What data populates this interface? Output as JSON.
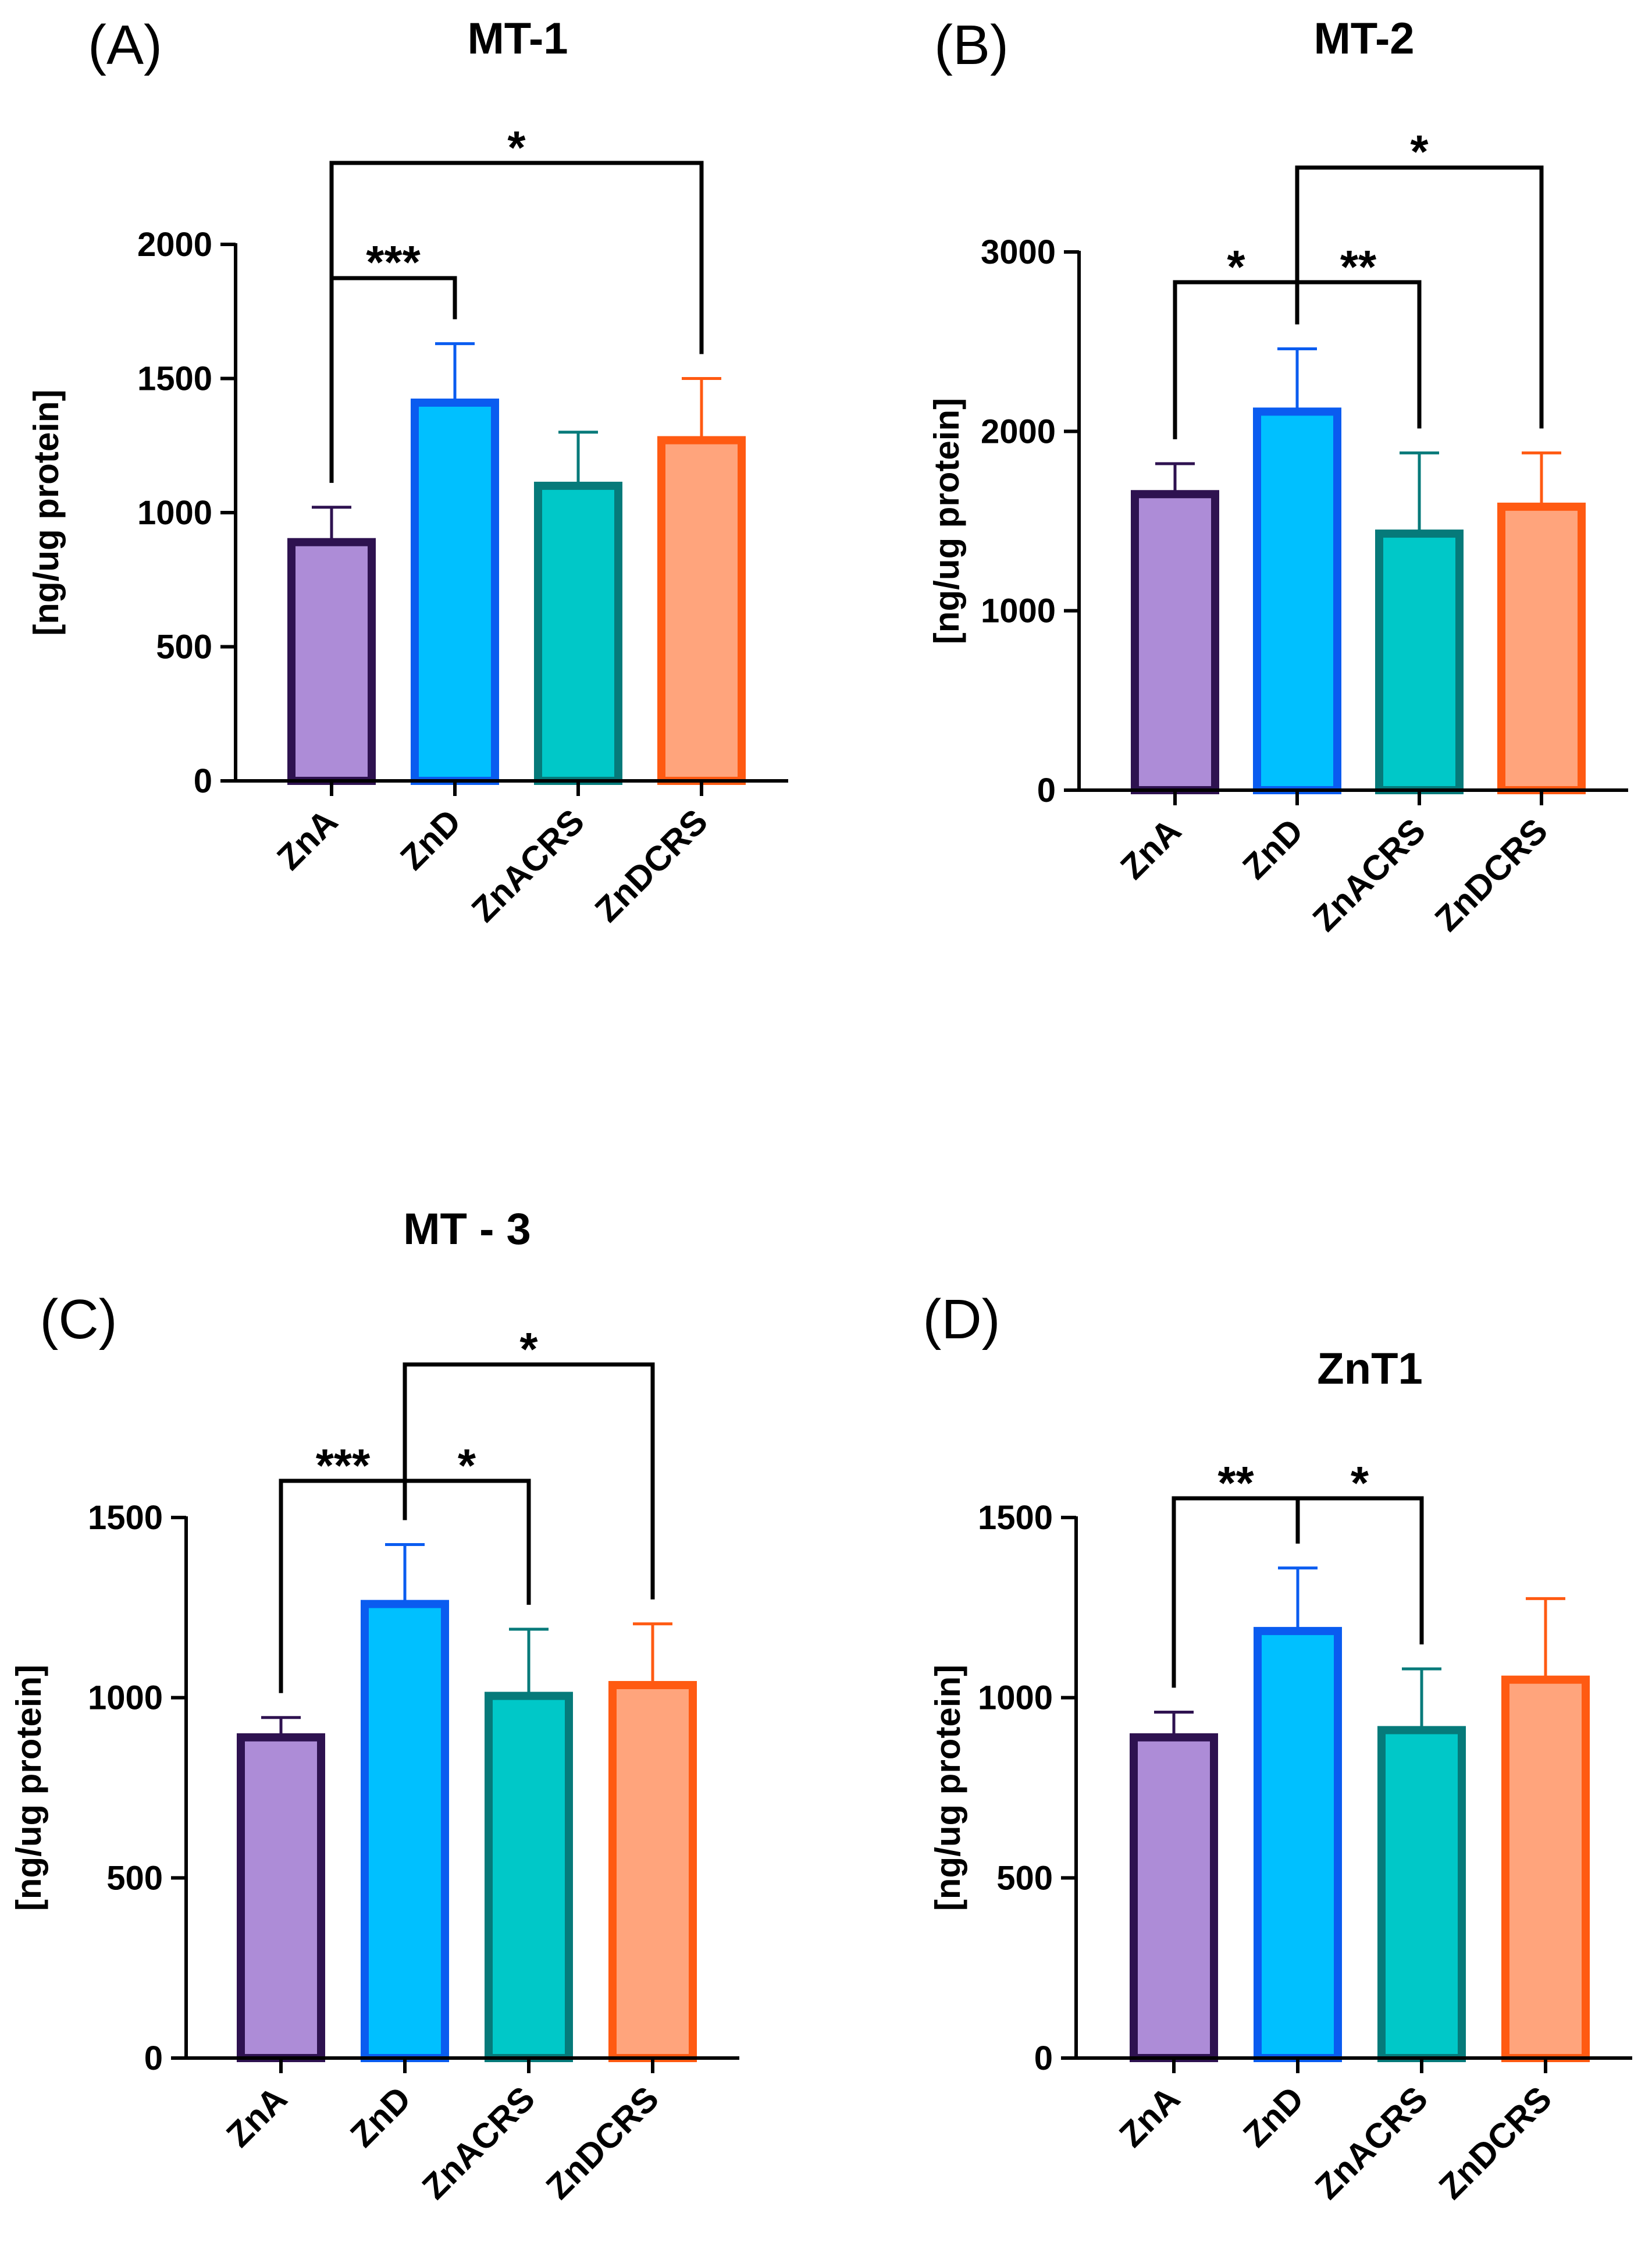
{
  "chart_data": [
    {
      "type": "bar",
      "panel_label": "(A)",
      "title": "MT-1",
      "xlabel": "",
      "ylabel": "[ng/ug protein]",
      "ylim": [
        0,
        2000
      ],
      "yticks": [
        0,
        500,
        1000,
        1500,
        2000
      ],
      "categories": [
        "ZnA",
        "ZnD",
        "ZnACRS",
        "ZnDCRS"
      ],
      "values": [
        890,
        1410,
        1100,
        1270
      ],
      "errors": [
        130,
        220,
        200,
        230
      ],
      "bar_colors": [
        "#ad8cd7",
        "#00c0ff",
        "#00c8c8",
        "#ffa47c"
      ],
      "edge_colors": [
        "#2e1250",
        "#0a5cf0",
        "#067a7a",
        "#ff5a12"
      ],
      "significance": [
        {
          "from": 0,
          "to": 1,
          "label": "***"
        },
        {
          "from": 0,
          "to": 3,
          "label": "*"
        }
      ]
    },
    {
      "type": "bar",
      "panel_label": "(B)",
      "title": "MT-2",
      "xlabel": "",
      "ylabel": "[ng/ug protein]",
      "ylim": [
        0,
        3000
      ],
      "yticks": [
        0,
        1000,
        2000,
        3000
      ],
      "categories": [
        "ZnA",
        "ZnD",
        "ZnACRS",
        "ZnDCRS"
      ],
      "values": [
        1650,
        2110,
        1430,
        1580
      ],
      "errors": [
        170,
        350,
        450,
        300
      ],
      "bar_colors": [
        "#ad8cd7",
        "#00c0ff",
        "#00c8c8",
        "#ffa47c"
      ],
      "edge_colors": [
        "#2e1250",
        "#0a5cf0",
        "#067a7a",
        "#ff5a12"
      ],
      "significance": [
        {
          "from": 0,
          "to": 1,
          "label": "*"
        },
        {
          "from": 1,
          "to": 2,
          "label": "**"
        },
        {
          "from": 1,
          "to": 3,
          "label": "*"
        }
      ]
    },
    {
      "type": "bar",
      "panel_label": "(C)",
      "title": "MT - 3",
      "xlabel": "",
      "ylabel": "[ng/ug protein]",
      "ylim": [
        0,
        1500
      ],
      "yticks": [
        0,
        500,
        1000,
        1500
      ],
      "categories": [
        "ZnA",
        "ZnD",
        "ZnACRS",
        "ZnDCRS"
      ],
      "values": [
        890,
        1260,
        1005,
        1035
      ],
      "errors": [
        55,
        165,
        185,
        170
      ],
      "bar_colors": [
        "#ad8cd7",
        "#00c0ff",
        "#00c8c8",
        "#ffa47c"
      ],
      "edge_colors": [
        "#2e1250",
        "#0a5cf0",
        "#067a7a",
        "#ff5a12"
      ],
      "significance": [
        {
          "from": 0,
          "to": 1,
          "label": "***"
        },
        {
          "from": 1,
          "to": 2,
          "label": "*"
        },
        {
          "from": 1,
          "to": 3,
          "label": "*"
        }
      ]
    },
    {
      "type": "bar",
      "panel_label": "(D)",
      "title": "ZnT1",
      "xlabel": "",
      "ylabel": "[ng/ug protein]",
      "ylim": [
        0,
        1500
      ],
      "yticks": [
        0,
        500,
        1000,
        1500
      ],
      "categories": [
        "ZnA",
        "ZnD",
        "ZnACRS",
        "ZnDCRS"
      ],
      "values": [
        890,
        1185,
        910,
        1050
      ],
      "errors": [
        70,
        175,
        170,
        225
      ],
      "bar_colors": [
        "#ad8cd7",
        "#00c0ff",
        "#00c8c8",
        "#ffa47c"
      ],
      "edge_colors": [
        "#2e1250",
        "#0a5cf0",
        "#067a7a",
        "#ff5a12"
      ],
      "significance": [
        {
          "from": 0,
          "to": 1,
          "label": "**"
        },
        {
          "from": 1,
          "to": 2,
          "label": "*"
        }
      ]
    }
  ]
}
